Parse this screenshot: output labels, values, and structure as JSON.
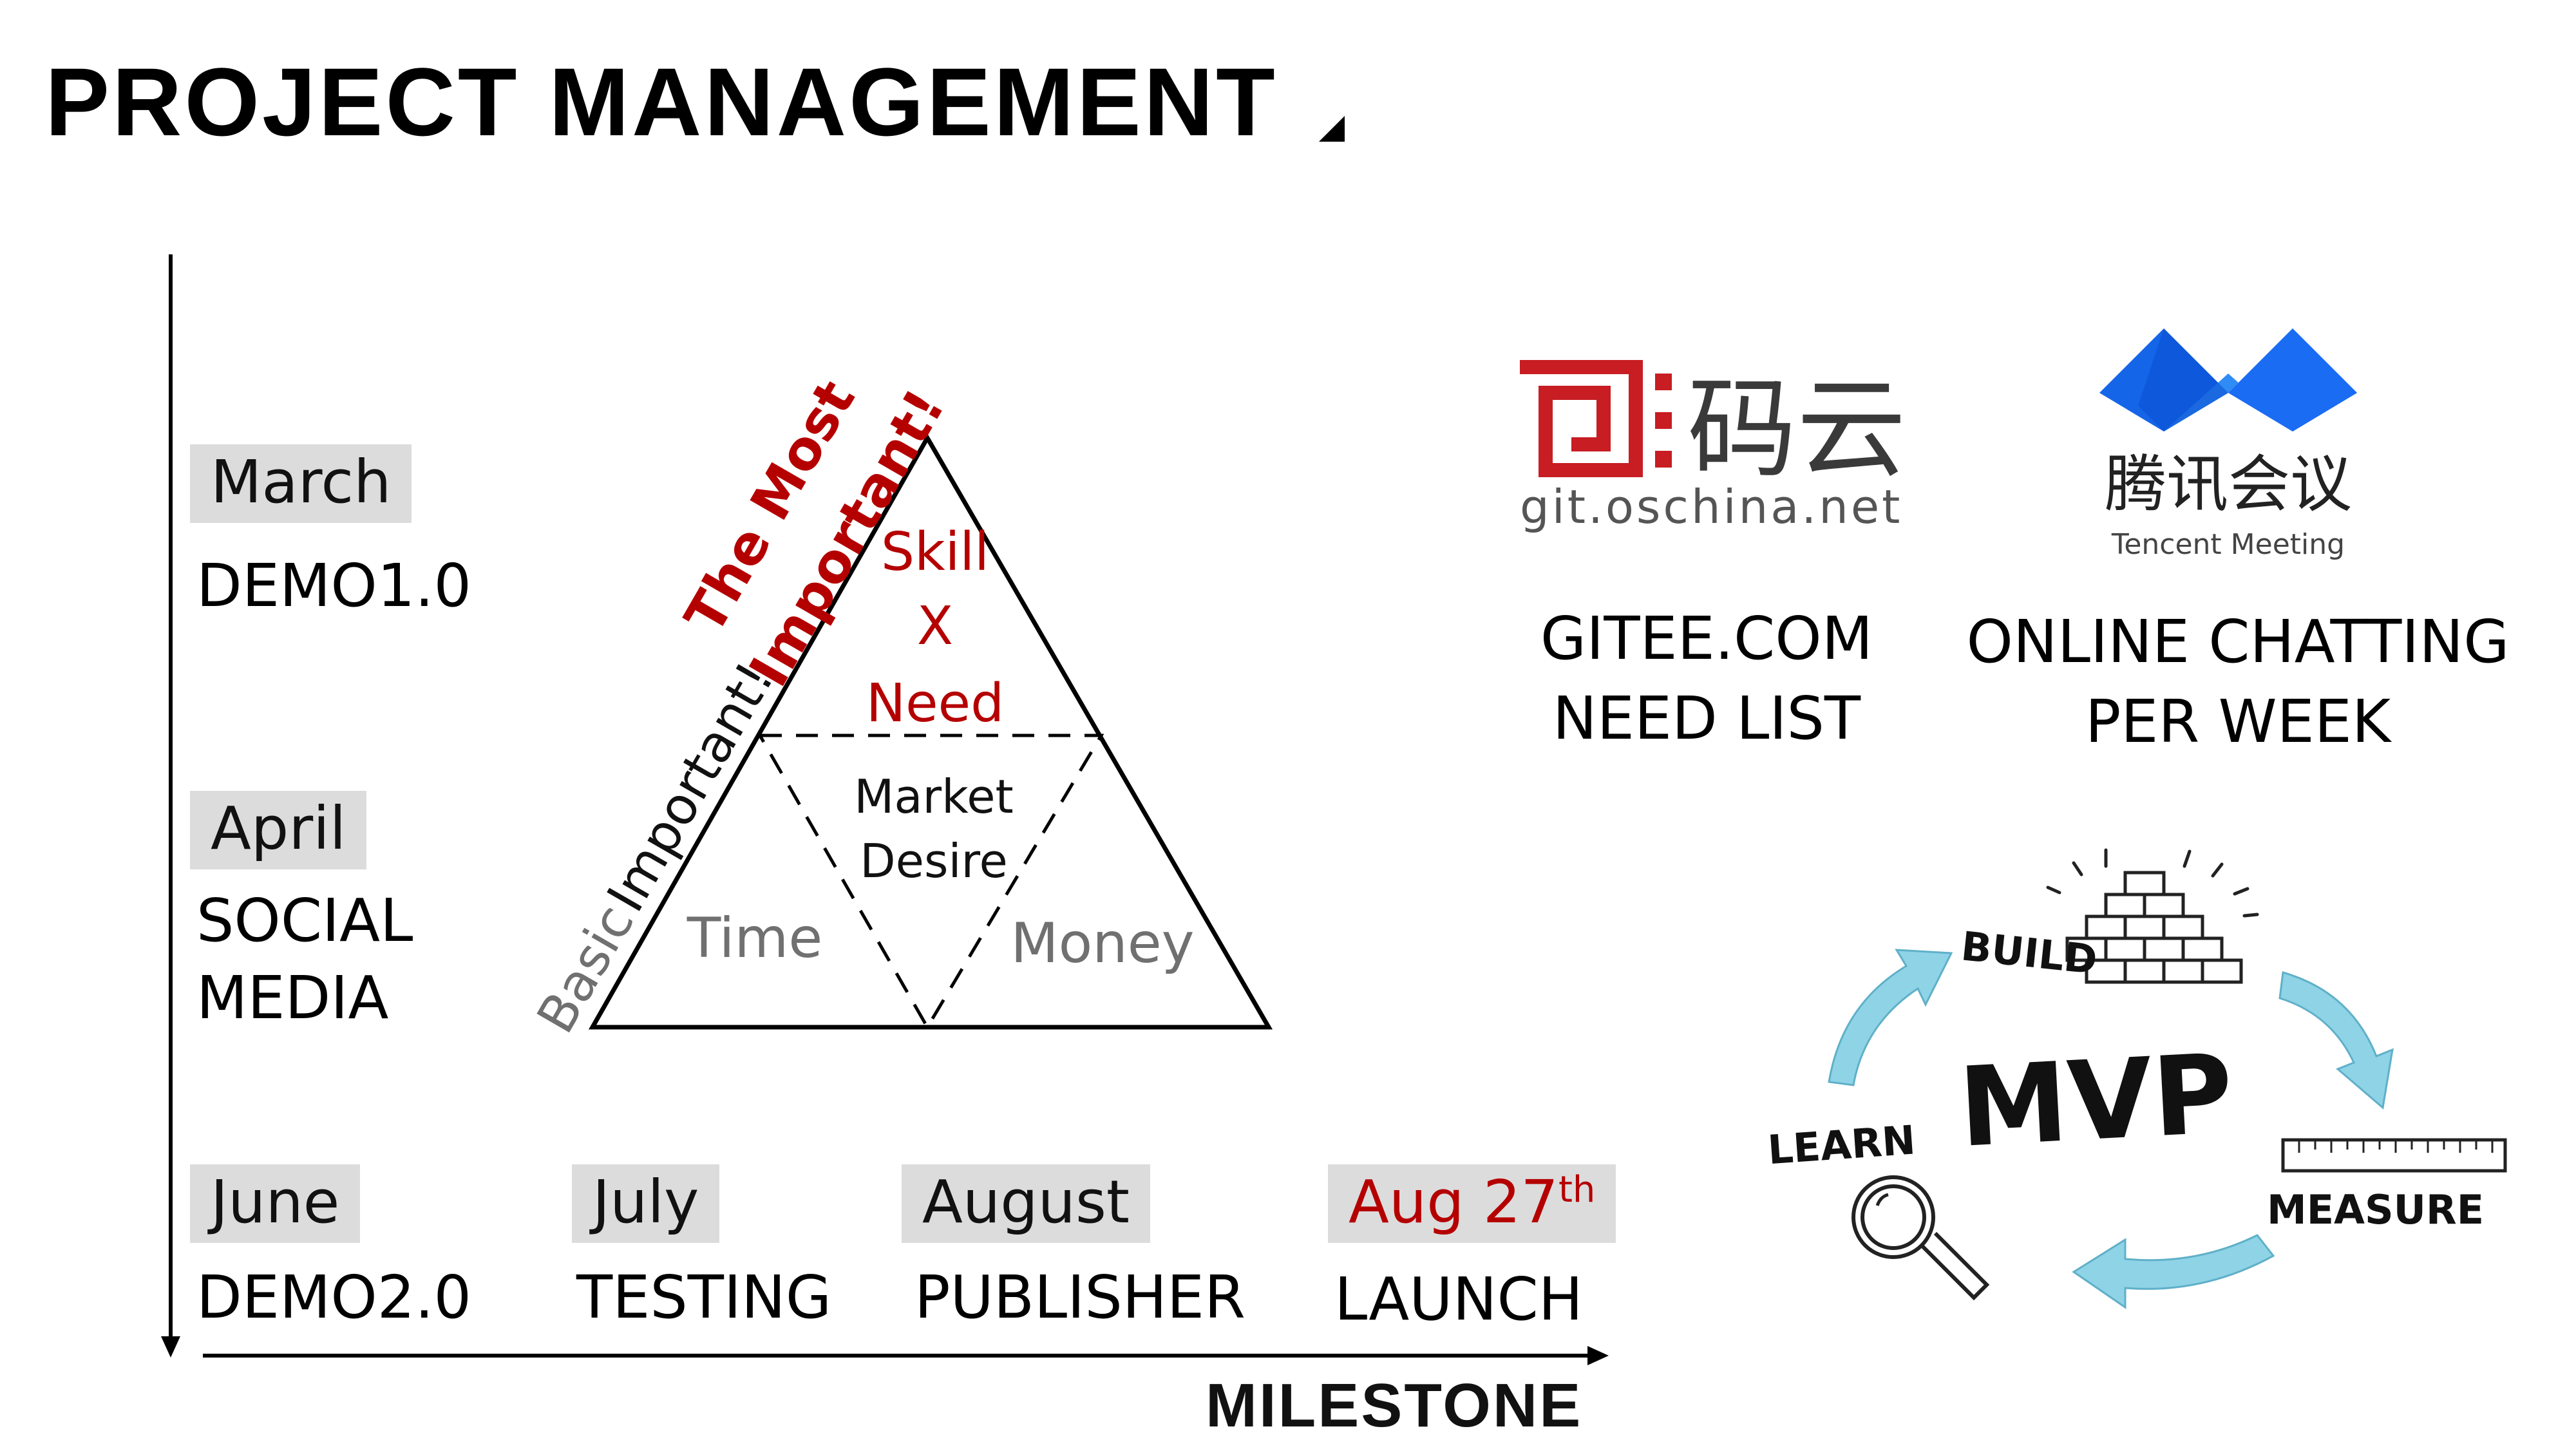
{
  "page": {
    "title": "PROJECT MANAGEMENT"
  },
  "timeline": {
    "vertical": [
      {
        "month": "March",
        "label": "DEMO1.0"
      },
      {
        "month": "April",
        "label": "SOCIAL\nMEDIA"
      }
    ],
    "horizontal": [
      {
        "month": "June",
        "label": "DEMO2.0"
      },
      {
        "month": "July",
        "label": "TESTING"
      },
      {
        "month": "August",
        "label": "PUBLISHER"
      },
      {
        "month_main": "Aug 27",
        "month_sup": "th",
        "label": "LAUNCH",
        "highlight_color": "#b50000"
      }
    ],
    "axis_label": "MILESTONE"
  },
  "triangle": {
    "top_label": "The Most\nImportant!",
    "bottom_label_basic": "Basic",
    "bottom_label_important": "Important!",
    "top_section": [
      "Skill",
      "X",
      "Need"
    ],
    "center_section": [
      "Market",
      "Desire"
    ],
    "left_section": "Time",
    "right_section": "Money",
    "accent_color": "#b50000",
    "muted_color": "#707070"
  },
  "tools": [
    {
      "logo_main": "码云",
      "logo_sub": "git.oschina.net",
      "caption": "GITEE.COM\nNEED LIST",
      "color": "#c71d23"
    },
    {
      "logo_main": "腾讯会议",
      "logo_sub": "Tencent Meeting",
      "caption": "ONLINE CHATTING\nPER WEEK",
      "color": "#1a6cf3"
    }
  ],
  "mvp": {
    "center": "MVP",
    "build": "BUILD",
    "measure": "MEASURE",
    "learn": "LEARN",
    "arrow_color": "#8fd3e6"
  }
}
